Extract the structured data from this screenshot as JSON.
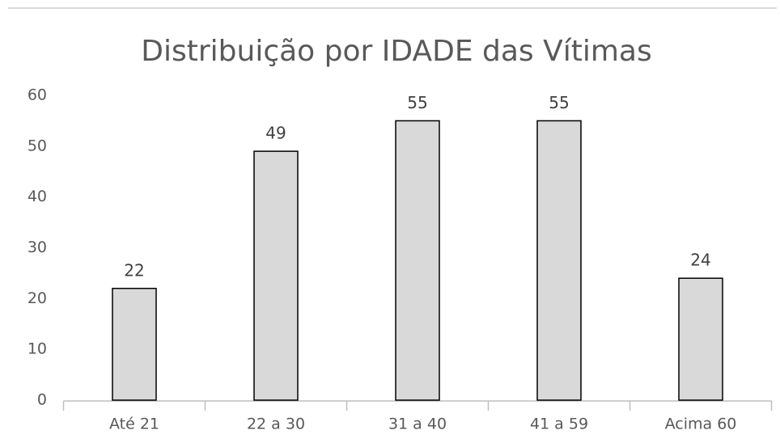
{
  "chart_data": {
    "type": "bar",
    "title": "Distribuição por IDADE das Vítimas",
    "categories": [
      "Até 21",
      "22 a 30",
      "31 a 40",
      "41 a 59",
      "Acima 60"
    ],
    "values": [
      22,
      49,
      55,
      55,
      24
    ],
    "color": "#d9d9d9",
    "ylim": [
      0,
      60
    ],
    "yticks": [
      0,
      10,
      20,
      30,
      40,
      50,
      60
    ],
    "grid": false
  }
}
